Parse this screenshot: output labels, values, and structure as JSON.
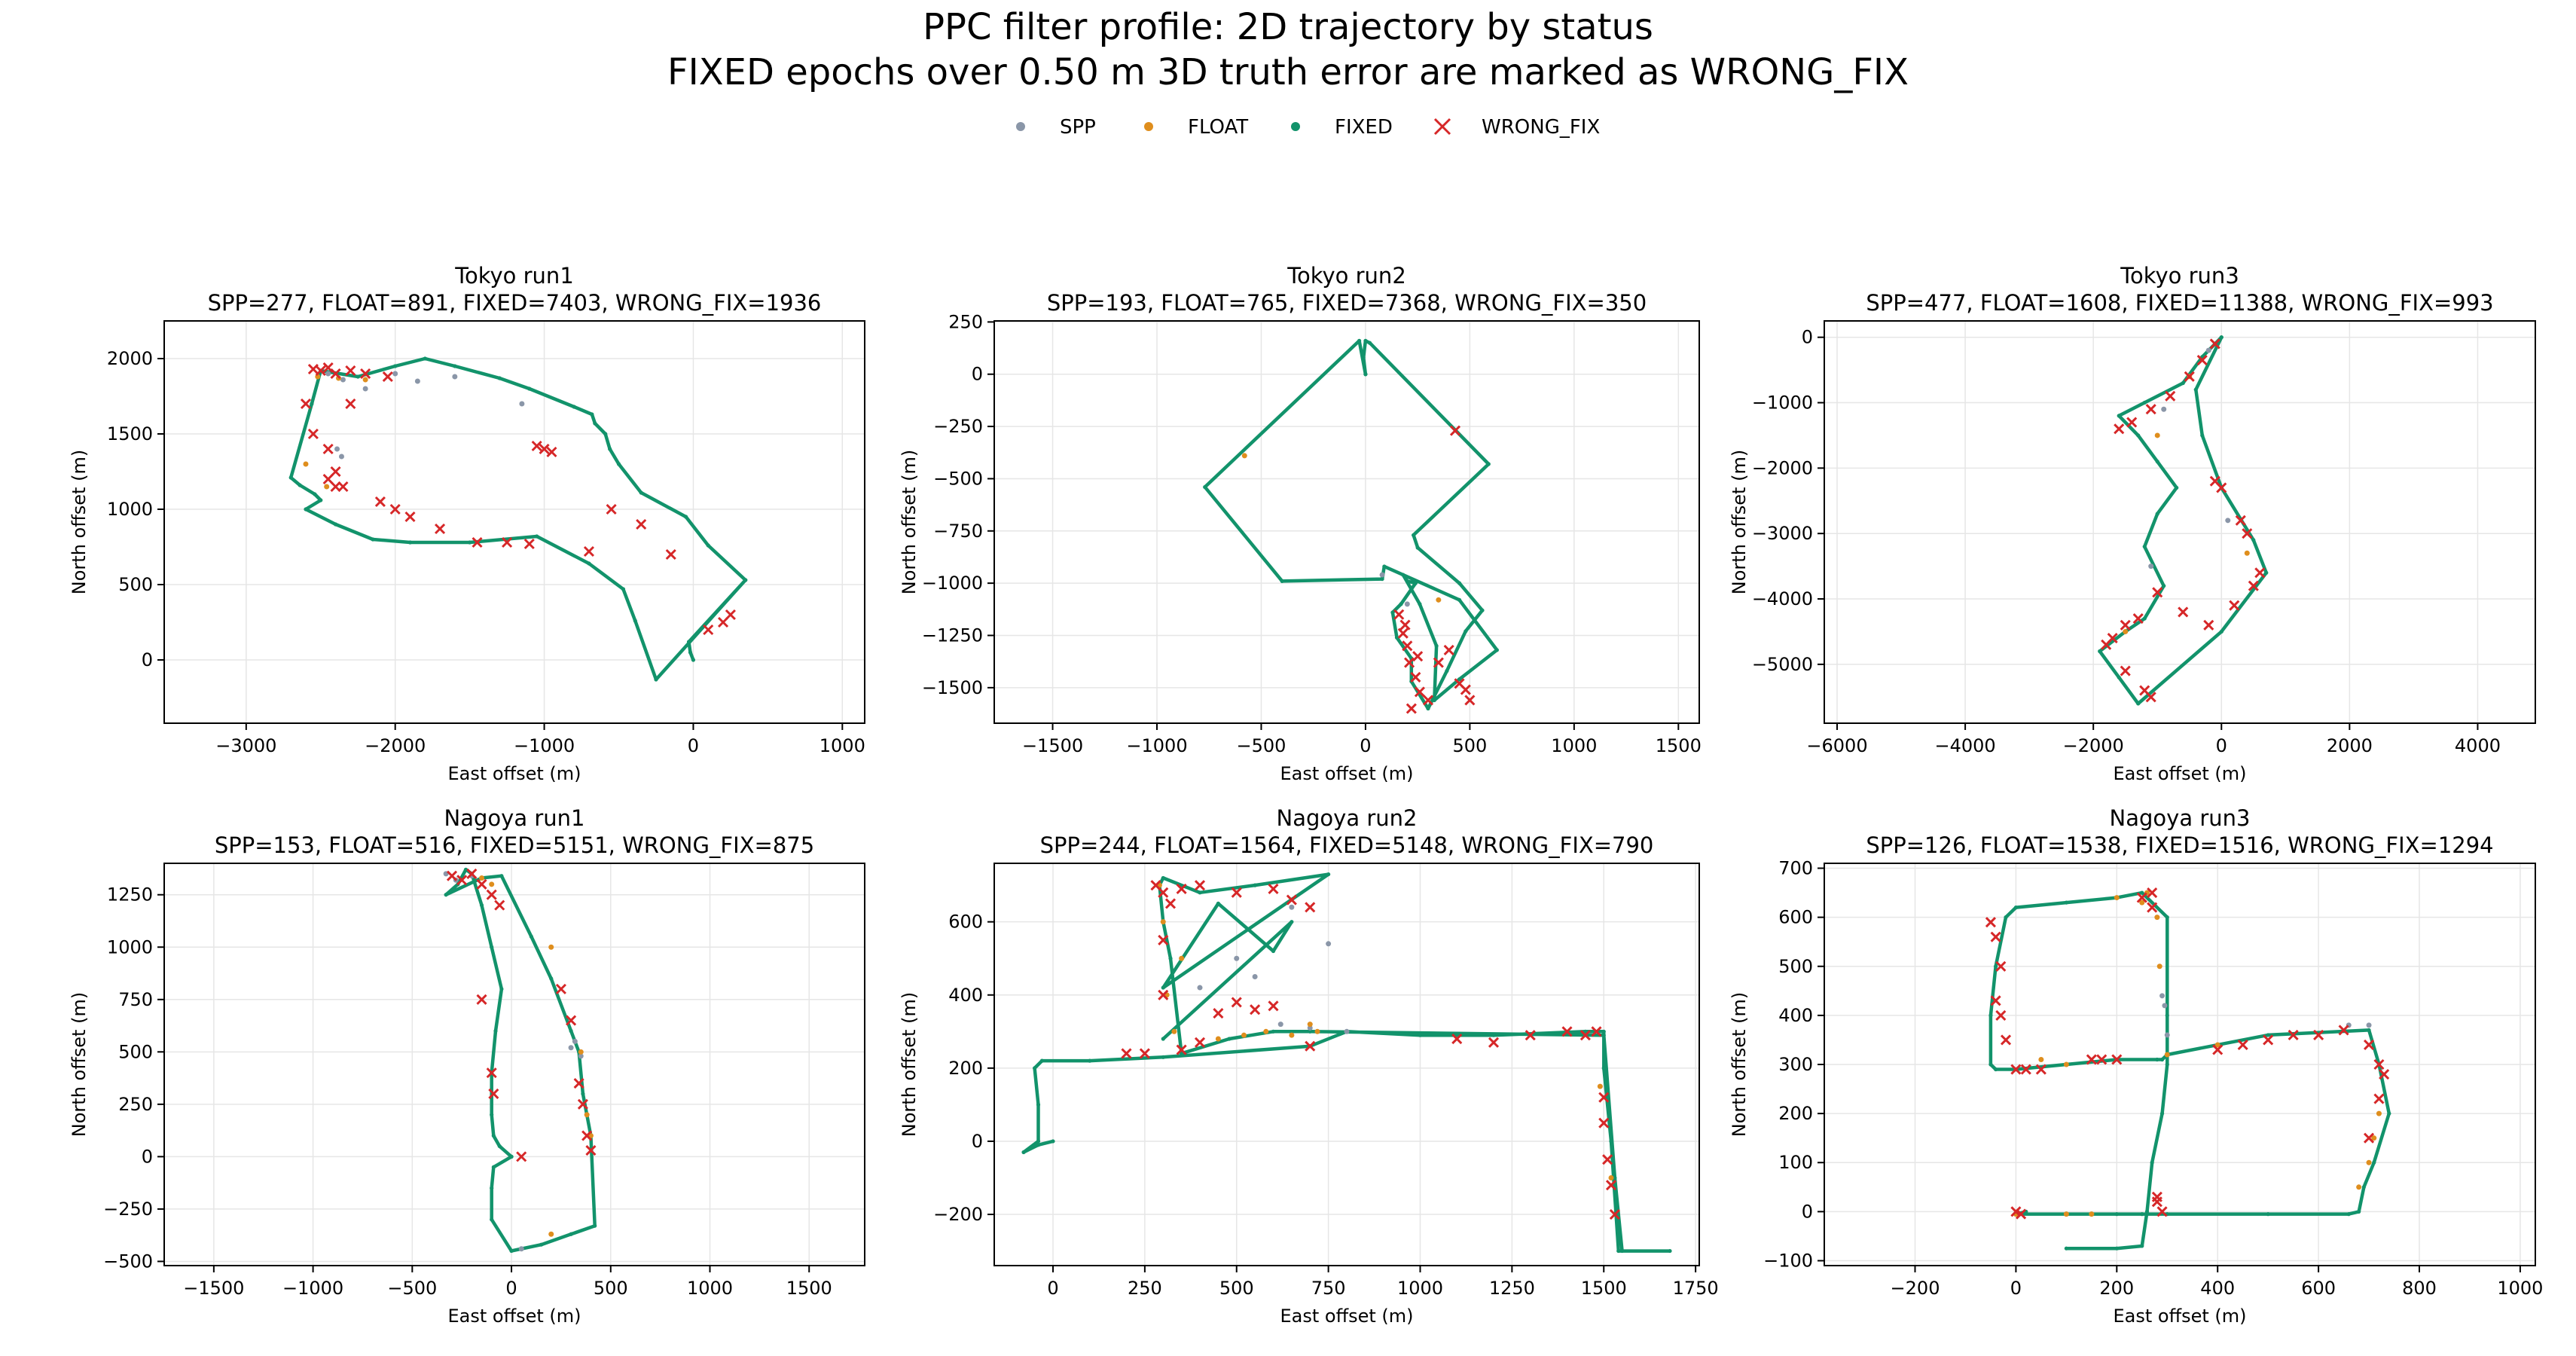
{
  "figure": {
    "title_line1": "PPC filter profile: 2D trajectory by status",
    "title_line2": "FIXED epochs over 0.50 m 3D truth error are marked as WRONG_FIX"
  },
  "legend": [
    {
      "label": "SPP",
      "color": "#8a96a8",
      "marker": "dot"
    },
    {
      "label": "FLOAT",
      "color": "#df8e1d",
      "marker": "dot"
    },
    {
      "label": "FIXED",
      "color": "#12936b",
      "marker": "dot"
    },
    {
      "label": "WRONG_FIX",
      "color": "#d62728",
      "marker": "x"
    }
  ],
  "colors": {
    "spp": "#8a96a8",
    "float": "#df8e1d",
    "fixed": "#12936b",
    "wrong_fix": "#d62728",
    "grid": "#e6e6e6",
    "track": "#c8c8c8"
  },
  "chart_data": [
    {
      "type": "scatter",
      "title": "Tokyo run1",
      "subtitle": "SPP=277, FLOAT=891, FIXED=7403, WRONG_FIX=1936",
      "xlabel": "East offset (m)",
      "ylabel": "North offset (m)",
      "xlim": [
        -3550,
        1150
      ],
      "ylim": [
        -420,
        2250
      ],
      "xticks": [
        -3000,
        -2000,
        -1000,
        0,
        1000
      ],
      "yticks": [
        0,
        500,
        1000,
        1500,
        2000
      ],
      "grid": true,
      "x": [
        0,
        -20,
        -30,
        350,
        100,
        -50,
        -350,
        -500,
        -560,
        -590,
        -660,
        -680,
        -800,
        -1100,
        -1300,
        -1600,
        -1800,
        -2000,
        -2250,
        -2500,
        -2560,
        -2700,
        -2640,
        -2540,
        -2500,
        -2600,
        -2400,
        -2150,
        -1900,
        -1500,
        -1050,
        -700,
        -470,
        -390,
        -250,
        350
      ],
      "y": [
        0,
        50,
        120,
        530,
        760,
        950,
        1110,
        1300,
        1400,
        1500,
        1570,
        1630,
        1680,
        1800,
        1870,
        1950,
        2000,
        1950,
        1880,
        1920,
        1700,
        1210,
        1160,
        1100,
        1060,
        1000,
        900,
        800,
        780,
        780,
        820,
        640,
        470,
        260,
        -130,
        530
      ],
      "spp": {
        "x": [
          -2450,
          -2350,
          -2200,
          -2000,
          -2390,
          -2360,
          -1850,
          -1150,
          -1600
        ],
        "y": [
          1900,
          1860,
          1800,
          1900,
          1400,
          1350,
          1850,
          1700,
          1880
        ]
      },
      "float": {
        "x": [
          -2520,
          -2380,
          -2200,
          -2600,
          -2460
        ],
        "y": [
          1880,
          1870,
          1860,
          1300,
          1150
        ]
      },
      "wrong_fix": {
        "x": [
          -2550,
          -2500,
          -2450,
          -2400,
          -2300,
          -2200,
          -2050,
          -2600,
          -2550,
          -2450,
          -2400,
          -2400,
          -2450,
          -2350,
          -2300,
          -2100,
          -2000,
          -1900,
          -1700,
          -1450,
          -1250,
          -1100,
          -1050,
          -950,
          -550,
          -350,
          -150,
          100,
          200,
          250,
          -1000,
          -700
        ],
        "y": [
          1930,
          1920,
          1940,
          1900,
          1920,
          1900,
          1880,
          1700,
          1500,
          1400,
          1250,
          1150,
          1200,
          1150,
          1700,
          1050,
          1000,
          950,
          870,
          780,
          780,
          770,
          1420,
          1380,
          1000,
          900,
          700,
          200,
          250,
          300,
          1400,
          720
        ]
      }
    },
    {
      "type": "scatter",
      "title": "Tokyo run2",
      "subtitle": "SPP=193, FLOAT=765, FIXED=7368, WRONG_FIX=350",
      "xlabel": "East offset (m)",
      "ylabel": "North offset (m)",
      "xlim": [
        -1780,
        1600
      ],
      "ylim": [
        -1670,
        255
      ],
      "xticks": [
        -1500,
        -1000,
        -500,
        0,
        500,
        1000,
        1500
      ],
      "yticks": [
        -1500,
        -1250,
        -1000,
        -750,
        -500,
        -250,
        0,
        250
      ],
      "grid": true,
      "x": [
        0,
        -10,
        0,
        20,
        590,
        230,
        250,
        450,
        560,
        480,
        390,
        300,
        220,
        220,
        150,
        130,
        170,
        240,
        200,
        180,
        260,
        340,
        330,
        450,
        630,
        450,
        90,
        80,
        -400,
        -770,
        -30,
        0
      ],
      "y": [
        0,
        80,
        160,
        150,
        -430,
        -770,
        -830,
        -1000,
        -1130,
        -1230,
        -1420,
        -1600,
        -1470,
        -1360,
        -1260,
        -1140,
        -1100,
        -1000,
        -990,
        -960,
        -1100,
        -1300,
        -1560,
        -1460,
        -1320,
        -1080,
        -920,
        -980,
        -990,
        -540,
        160,
        0
      ],
      "spp": {
        "x": [
          80,
          200
        ],
        "y": [
          -960,
          -1100
        ]
      },
      "float": {
        "x": [
          -580,
          350
        ],
        "y": [
          -390,
          -1080
        ]
      },
      "wrong_fix": {
        "x": [
          160,
          180,
          200,
          210,
          240,
          260,
          300,
          350,
          400,
          450,
          480,
          500,
          220,
          250,
          190,
          430
        ],
        "y": [
          -1150,
          -1240,
          -1300,
          -1380,
          -1450,
          -1520,
          -1560,
          -1380,
          -1320,
          -1480,
          -1510,
          -1560,
          -1600,
          -1350,
          -1200,
          -270
        ]
      }
    },
    {
      "type": "scatter",
      "title": "Tokyo run3",
      "subtitle": "SPP=477, FLOAT=1608, FIXED=11388, WRONG_FIX=993",
      "xlabel": "East offset (m)",
      "ylabel": "North offset (m)",
      "xlim": [
        -6200,
        4900
      ],
      "ylim": [
        -5900,
        250
      ],
      "xticks": [
        -6000,
        -4000,
        -2000,
        0,
        2000,
        4000
      ],
      "yticks": [
        -5000,
        -4000,
        -3000,
        -2000,
        -1000,
        0
      ],
      "grid": true,
      "x": [
        0,
        -300,
        -600,
        -1200,
        -1600,
        -1300,
        -1000,
        -700,
        -1000,
        -1200,
        -900,
        -1200,
        -1500,
        -1900,
        -1600,
        -1300,
        0,
        700,
        500,
        0,
        -300,
        -400,
        0
      ],
      "y": [
        0,
        -300,
        -700,
        -1000,
        -1200,
        -1500,
        -1900,
        -2300,
        -2700,
        -3200,
        -3800,
        -4300,
        -4500,
        -4800,
        -5200,
        -5600,
        -4500,
        -3600,
        -3100,
        -2300,
        -1500,
        -800,
        0
      ],
      "spp": {
        "x": [
          -200,
          -900,
          -1100,
          100
        ],
        "y": [
          -200,
          -1100,
          -3500,
          -2800
        ]
      },
      "float": {
        "x": [
          -500,
          -1000,
          -1500,
          400
        ],
        "y": [
          -600,
          -1500,
          -4500,
          -3300
        ]
      },
      "wrong_fix": {
        "x": [
          -100,
          -300,
          -500,
          -800,
          -1100,
          -1400,
          -1600,
          -1800,
          -1700,
          -1500,
          -1300,
          -1000,
          -100,
          0,
          300,
          400,
          600,
          500,
          200,
          -200,
          -600,
          -1500,
          -1200,
          -1100
        ],
        "y": [
          -100,
          -350,
          -600,
          -900,
          -1100,
          -1300,
          -1400,
          -4700,
          -4600,
          -4400,
          -4300,
          -3900,
          -2200,
          -2300,
          -2800,
          -3000,
          -3600,
          -3800,
          -4100,
          -4400,
          -4200,
          -5100,
          -5400,
          -5500
        ]
      }
    },
    {
      "type": "scatter",
      "title": "Nagoya run1",
      "subtitle": "SPP=153, FLOAT=516, FIXED=5151, WRONG_FIX=875",
      "xlabel": "East offset (m)",
      "ylabel": "North offset (m)",
      "xlim": [
        -1750,
        1780
      ],
      "ylim": [
        -520,
        1400
      ],
      "xticks": [
        -1500,
        -1000,
        -500,
        0,
        500,
        1000,
        1500
      ],
      "yticks": [
        -500,
        -250,
        0,
        250,
        500,
        750,
        1000,
        1250
      ],
      "grid": true,
      "x": [
        0,
        -60,
        -90,
        -100,
        -100,
        -80,
        -50,
        -100,
        -150,
        -200,
        -230,
        -270,
        -330,
        -150,
        -50,
        100,
        200,
        300,
        340,
        360,
        400,
        420,
        300,
        150,
        0,
        -100,
        -100,
        -90,
        0
      ],
      "y": [
        0,
        50,
        100,
        200,
        400,
        600,
        800,
        1000,
        1200,
        1350,
        1370,
        1300,
        1250,
        1330,
        1340,
        1050,
        850,
        600,
        500,
        300,
        100,
        -330,
        -370,
        -420,
        -450,
        -300,
        -150,
        -50,
        0
      ],
      "spp": {
        "x": [
          -330,
          -280,
          -200,
          320,
          350,
          300,
          50
        ],
        "y": [
          1350,
          1320,
          1340,
          550,
          480,
          520,
          -440
        ]
      },
      "float": {
        "x": [
          -150,
          -100,
          200,
          350,
          380,
          400,
          200
        ],
        "y": [
          1330,
          1300,
          1000,
          500,
          200,
          100,
          -370
        ]
      },
      "wrong_fix": {
        "x": [
          -300,
          -250,
          -200,
          -150,
          -100,
          -60,
          -150,
          -100,
          -90,
          50,
          250,
          300,
          340,
          360,
          380,
          400
        ],
        "y": [
          1340,
          1320,
          1350,
          1300,
          1250,
          1200,
          750,
          400,
          300,
          0,
          800,
          650,
          350,
          250,
          100,
          30
        ]
      }
    },
    {
      "type": "scatter",
      "title": "Nagoya run2",
      "subtitle": "SPP=244, FLOAT=1564, FIXED=5148, WRONG_FIX=790",
      "xlabel": "East offset (m)",
      "ylabel": "North offset (m)",
      "xlim": [
        -160,
        1760
      ],
      "ylim": [
        -340,
        760
      ],
      "xticks": [
        0,
        250,
        500,
        750,
        1000,
        1250,
        1500,
        1750
      ],
      "yticks": [
        -200,
        0,
        200,
        400,
        600
      ],
      "grid": true,
      "x": [
        0,
        -40,
        -80,
        -40,
        -40,
        -50,
        -30,
        100,
        300,
        700,
        800,
        1000,
        1200,
        1450,
        1500,
        1500,
        1520,
        1540,
        1680,
        1550,
        1530,
        1500,
        700,
        600,
        480,
        350,
        320,
        300,
        290,
        300,
        400,
        550,
        750,
        300,
        450,
        600,
        650,
        300
      ],
      "y": [
        0,
        -10,
        -30,
        0,
        100,
        200,
        220,
        220,
        230,
        260,
        300,
        290,
        290,
        300,
        300,
        200,
        0,
        -300,
        -300,
        -300,
        -100,
        290,
        300,
        300,
        280,
        240,
        500,
        600,
        700,
        720,
        680,
        700,
        730,
        420,
        650,
        520,
        600,
        280
      ],
      "spp": {
        "x": [
          620,
          700,
          800,
          750,
          500,
          400,
          550,
          650
        ],
        "y": [
          320,
          310,
          300,
          540,
          500,
          420,
          450,
          640
        ]
      },
      "float": {
        "x": [
          300,
          350,
          450,
          520,
          580,
          650,
          700,
          720,
          290,
          310,
          330,
          1520,
          1490
        ],
        "y": [
          600,
          500,
          280,
          290,
          300,
          290,
          320,
          300,
          700,
          400,
          300,
          -100,
          150
        ]
      },
      "wrong_fix": {
        "x": [
          280,
          300,
          320,
          350,
          400,
          500,
          600,
          650,
          700,
          300,
          300,
          350,
          450,
          500,
          550,
          600,
          700,
          1100,
          1200,
          1300,
          1400,
          1450,
          1480,
          1500,
          1500,
          1510,
          1520,
          1530,
          400,
          200,
          250
        ],
        "y": [
          700,
          680,
          650,
          690,
          700,
          680,
          690,
          660,
          640,
          550,
          400,
          250,
          350,
          380,
          360,
          370,
          260,
          280,
          270,
          290,
          300,
          290,
          300,
          120,
          50,
          -50,
          -120,
          -200,
          270,
          240,
          240
        ]
      }
    },
    {
      "type": "scatter",
      "title": "Nagoya run3",
      "subtitle": "SPP=126, FLOAT=1538, FIXED=1516, WRONG_FIX=1294",
      "xlabel": "East offset (m)",
      "ylabel": "North offset (m)",
      "xlim": [
        -380,
        1030
      ],
      "ylim": [
        -110,
        710
      ],
      "xticks": [
        -200,
        0,
        200,
        400,
        600,
        800,
        1000
      ],
      "yticks": [
        -100,
        0,
        100,
        200,
        300,
        400,
        500,
        600,
        700
      ],
      "grid": true,
      "x": [
        100,
        200,
        250,
        260,
        270,
        290,
        300,
        300,
        300,
        250,
        200,
        100,
        0,
        -20,
        -40,
        -50,
        -50,
        -40,
        0,
        100,
        200,
        280,
        290,
        300,
        500,
        700,
        720,
        740,
        710,
        690,
        680,
        660,
        500,
        300,
        250,
        200,
        100,
        0,
        20
      ],
      "y": [
        -75,
        -75,
        -70,
        0,
        100,
        200,
        300,
        400,
        600,
        650,
        640,
        630,
        620,
        600,
        500,
        400,
        300,
        290,
        290,
        300,
        310,
        310,
        310,
        320,
        360,
        370,
        300,
        200,
        100,
        50,
        0,
        -5,
        -5,
        -5,
        -5,
        -5,
        -5,
        -5,
        0
      ],
      "spp": {
        "x": [
          290,
          295,
          300,
          660,
          700
        ],
        "y": [
          440,
          420,
          360,
          380,
          380
        ]
      },
      "float": {
        "x": [
          0,
          100,
          150,
          300,
          400,
          680,
          700,
          710,
          720,
          280,
          285,
          200,
          250,
          260,
          100,
          50
        ],
        "y": [
          -5,
          -5,
          -5,
          320,
          340,
          50,
          100,
          150,
          200,
          600,
          500,
          640,
          630,
          650,
          300,
          310
        ]
      },
      "wrong_fix": {
        "x": [
          -50,
          -40,
          -30,
          -40,
          -30,
          -20,
          0,
          20,
          50,
          150,
          200,
          250,
          270,
          270,
          280,
          400,
          450,
          500,
          550,
          600,
          650,
          700,
          720,
          730,
          720,
          700,
          0,
          10,
          280,
          290,
          170
        ],
        "y": [
          590,
          560,
          500,
          430,
          400,
          350,
          290,
          290,
          290,
          310,
          310,
          640,
          650,
          620,
          30,
          330,
          340,
          350,
          360,
          360,
          370,
          340,
          300,
          280,
          230,
          150,
          0,
          -5,
          20,
          0,
          310
        ]
      }
    }
  ]
}
